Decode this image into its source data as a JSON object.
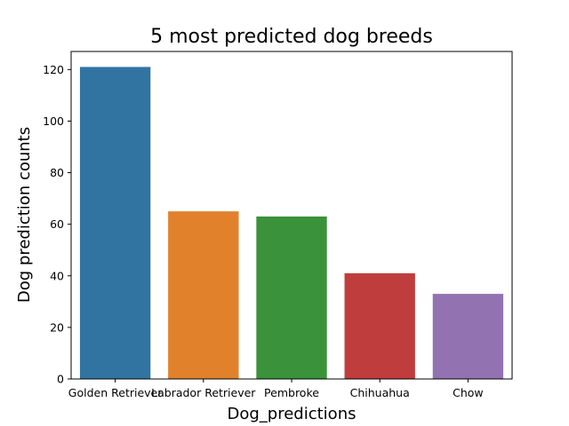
{
  "chart_data": {
    "type": "bar",
    "title": "5 most predicted dog breeds",
    "xlabel": "Dog_predictions",
    "ylabel": "Dog prediction counts",
    "categories": [
      "Golden Retriever",
      "Labrador Retriever",
      "Pembroke",
      "Chihuahua",
      "Chow"
    ],
    "values": [
      121,
      65,
      63,
      41,
      33
    ],
    "colors": [
      "#3274a1",
      "#e1812c",
      "#3a923a",
      "#c03d3e",
      "#9372b2"
    ],
    "ylim": [
      0,
      127
    ],
    "yticks": [
      0,
      20,
      40,
      60,
      80,
      100,
      120
    ],
    "ytick_labels": [
      "0",
      "20",
      "40",
      "60",
      "80",
      "100",
      "120"
    ],
    "grid": false,
    "legend": "none"
  }
}
